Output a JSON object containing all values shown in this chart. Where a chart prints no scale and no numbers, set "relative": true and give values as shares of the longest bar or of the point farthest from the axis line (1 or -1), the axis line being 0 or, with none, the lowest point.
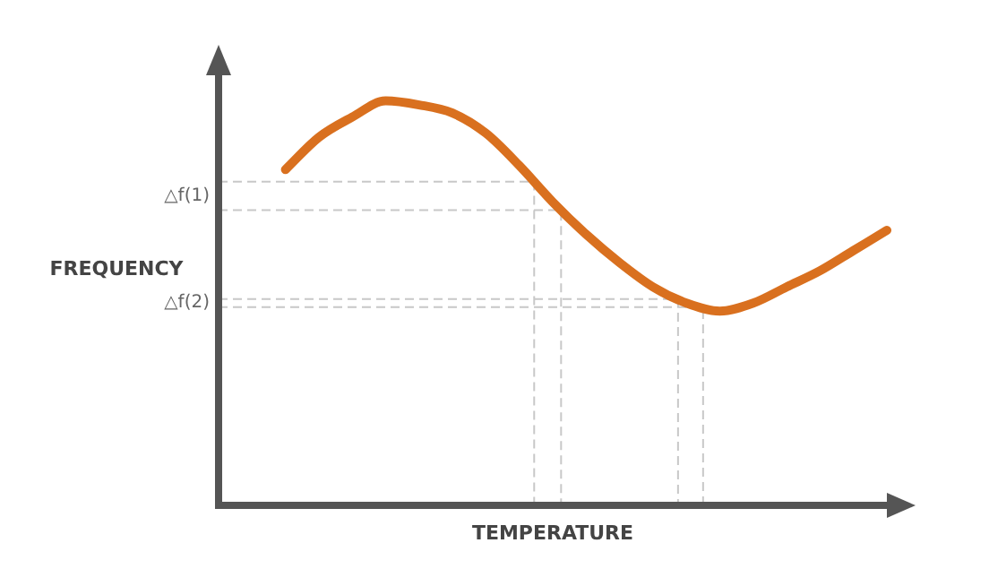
{
  "chart_data": {
    "type": "line",
    "relative": true,
    "xlabel": "TEMPERATURE",
    "ylabel": "FREQUENCY",
    "categories": [
      null,
      null,
      null,
      null,
      null,
      null,
      null,
      null,
      null,
      null,
      null,
      null,
      null,
      null,
      null,
      null,
      null,
      null,
      null,
      null,
      null
    ],
    "series": [
      {
        "color": "#d9701f",
        "values": [
          null,
          null,
          0.83,
          0.91,
          0.96,
          1,
          0.99,
          0.97,
          0.92,
          0.84,
          0.75,
          0.67,
          0.6,
          0.54,
          0.5,
          0.48,
          0.5,
          0.54,
          0.58,
          0.63,
          0.68
        ]
      }
    ],
    "ref_lines": [
      {
        "axis": "y",
        "value": 0.8,
        "label": "△f(1)",
        "color": "#c8c8c8",
        "line_style": "dashed"
      },
      {
        "axis": "y",
        "value": 0.73,
        "color": "#c8c8c8",
        "line_style": "dashed"
      },
      {
        "axis": "y",
        "value": 0.51,
        "label": "△f(2)",
        "color": "#c8c8c8",
        "line_style": "dashed"
      },
      {
        "axis": "y",
        "value": 0.49,
        "color": "#c8c8c8",
        "line_style": "dashed"
      }
    ]
  }
}
